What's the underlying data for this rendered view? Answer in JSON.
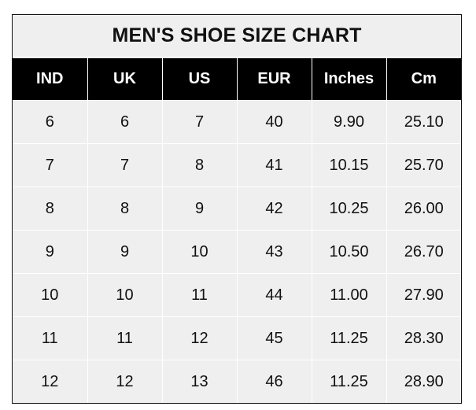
{
  "title": "MEN'S SHOE SIZE CHART",
  "headers": [
    "IND",
    "UK",
    "US",
    "EUR",
    "Inches",
    "Cm"
  ],
  "rows": [
    [
      "6",
      "6",
      "7",
      "40",
      "9.90",
      "25.10"
    ],
    [
      "7",
      "7",
      "8",
      "41",
      "10.15",
      "25.70"
    ],
    [
      "8",
      "8",
      "9",
      "42",
      "10.25",
      "26.00"
    ],
    [
      "9",
      "9",
      "10",
      "43",
      "10.50",
      "26.70"
    ],
    [
      "10",
      "10",
      "11",
      "44",
      "11.00",
      "27.90"
    ],
    [
      "11",
      "11",
      "12",
      "45",
      "11.25",
      "28.30"
    ],
    [
      "12",
      "12",
      "13",
      "46",
      "11.25",
      "28.90"
    ]
  ],
  "colors": {
    "header_bg": "#000000",
    "cell_bg": "#efefef",
    "grid": "#ffffff"
  }
}
